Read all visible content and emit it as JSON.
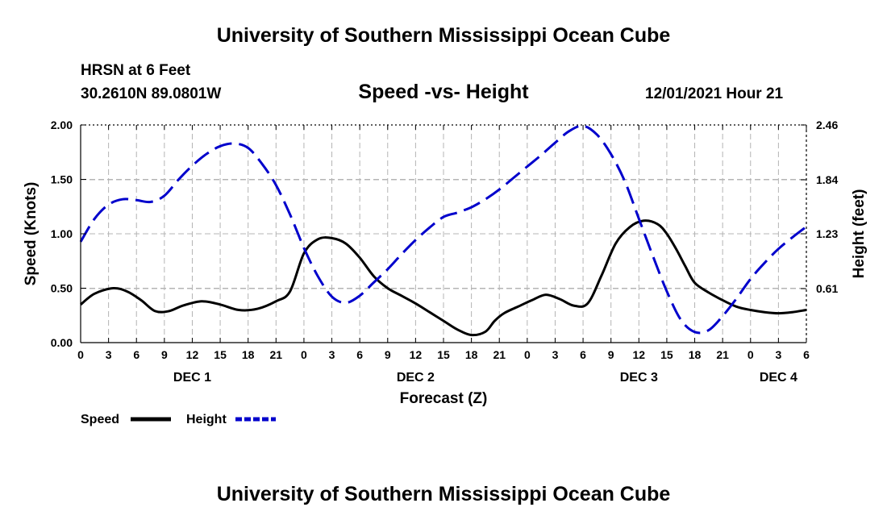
{
  "header": {
    "top_title": "University of Southern Mississippi Ocean Cube",
    "station": "HRSN at 6 Feet",
    "coords": "30.2610N  89.0801W",
    "chart_title": "Speed -vs- Height",
    "datetime": "12/01/2021 Hour 21"
  },
  "footer": {
    "bottom_title": "University of Southern Mississippi Ocean Cube"
  },
  "colors": {
    "speed": "#000000",
    "height": "#0000cc",
    "grid": "#b4b4b4"
  },
  "chart_data": {
    "type": "line",
    "title": "Speed -vs- Height",
    "xlabel": "Forecast (Z)",
    "ylabel": "Speed (Knots)",
    "y2label": "Height (feet)",
    "x_range_hours": [
      0,
      78
    ],
    "ylim": [
      0,
      2.0
    ],
    "y2lim": [
      0,
      2.46
    ],
    "y_ticks": [
      "0.00",
      "0.50",
      "1.00",
      "1.50",
      "2.00"
    ],
    "y_tick_values": [
      0,
      0.5,
      1.0,
      1.5,
      2.0
    ],
    "y2_ticks": [
      "0.61",
      "1.23",
      "1.84",
      "2.46"
    ],
    "y2_tick_values": [
      0.61,
      1.23,
      1.84,
      2.46
    ],
    "x_ticks": [
      "0",
      "3",
      "6",
      "9",
      "12",
      "15",
      "18",
      "21",
      "0",
      "3",
      "6",
      "9",
      "12",
      "15",
      "18",
      "21",
      "0",
      "3",
      "6",
      "9",
      "12",
      "15",
      "18",
      "21",
      "0",
      "3",
      "6"
    ],
    "day_labels": [
      {
        "label": "DEC 1",
        "hour": 12
      },
      {
        "label": "DEC 2",
        "hour": 36
      },
      {
        "label": "DEC 3",
        "hour": 60
      },
      {
        "label": "DEC 4",
        "hour": 75
      }
    ],
    "grid": true,
    "legend": "bottom-left",
    "series": [
      {
        "name": "Speed",
        "axis": "left",
        "style": "solid",
        "hours": [
          0,
          1.5,
          3.5,
          5,
          6.5,
          8,
          9.5,
          11,
          13,
          15,
          17,
          19,
          21,
          22.5,
          24,
          25.5,
          27,
          28.5,
          30,
          31.5,
          33,
          34.5,
          36,
          37.5,
          39,
          40.5,
          42,
          43.5,
          44.5,
          45.5,
          47,
          48.5,
          50,
          51.5,
          53,
          54.5,
          56,
          57.5,
          59,
          60.5,
          62,
          63,
          64,
          65,
          66,
          67.5,
          69,
          70.5,
          72,
          73.5,
          75,
          76.5,
          78
        ],
        "values": [
          0.35,
          0.45,
          0.5,
          0.47,
          0.39,
          0.29,
          0.29,
          0.34,
          0.38,
          0.35,
          0.3,
          0.31,
          0.38,
          0.47,
          0.82,
          0.95,
          0.96,
          0.91,
          0.78,
          0.61,
          0.5,
          0.43,
          0.36,
          0.28,
          0.2,
          0.12,
          0.07,
          0.1,
          0.2,
          0.27,
          0.33,
          0.39,
          0.44,
          0.4,
          0.34,
          0.36,
          0.62,
          0.91,
          1.06,
          1.12,
          1.09,
          1.0,
          0.86,
          0.7,
          0.55,
          0.46,
          0.39,
          0.33,
          0.3,
          0.28,
          0.27,
          0.28,
          0.3
        ]
      },
      {
        "name": "Height",
        "axis": "right",
        "style": "dashed",
        "hours": [
          0,
          1.5,
          3,
          4.5,
          6,
          7.5,
          9,
          10.5,
          12,
          13.5,
          15,
          16.5,
          18,
          19.5,
          21,
          22.5,
          24,
          25.5,
          27,
          28.5,
          30,
          31.5,
          33,
          34.5,
          36,
          37.5,
          39,
          40.5,
          42,
          43.5,
          45,
          46.5,
          48,
          49.5,
          51,
          52.5,
          54,
          55.5,
          57,
          58.5,
          60,
          61.5,
          63,
          64.5,
          66,
          67.5,
          69,
          70.5,
          72,
          73.5,
          75,
          76.5,
          78
        ],
        "values": [
          1.14,
          1.4,
          1.56,
          1.62,
          1.61,
          1.59,
          1.66,
          1.84,
          2.0,
          2.13,
          2.22,
          2.25,
          2.2,
          2.02,
          1.78,
          1.45,
          1.07,
          0.75,
          0.52,
          0.45,
          0.53,
          0.68,
          0.83,
          1.0,
          1.16,
          1.3,
          1.42,
          1.47,
          1.53,
          1.62,
          1.73,
          1.86,
          1.99,
          2.12,
          2.26,
          2.39,
          2.45,
          2.35,
          2.13,
          1.82,
          1.4,
          0.98,
          0.58,
          0.26,
          0.12,
          0.14,
          0.3,
          0.5,
          0.72,
          0.9,
          1.06,
          1.19,
          1.31
        ]
      }
    ]
  }
}
